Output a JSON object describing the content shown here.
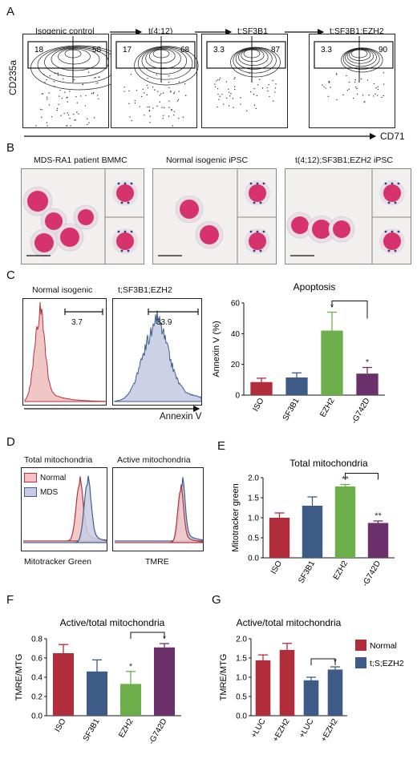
{
  "panel_letters": {
    "A": "A",
    "B": "B",
    "C": "C",
    "D": "D",
    "E": "E",
    "F": "F",
    "G": "G"
  },
  "panelA": {
    "stages": [
      "Isogenic control",
      "t(4;12)",
      "t;SF3B1",
      "t;SF3B1;EZH2"
    ],
    "gate_left": [
      "18",
      "17",
      "3.3",
      "3.3"
    ],
    "gate_right": [
      "58",
      "68",
      "87",
      "90"
    ],
    "ylabel": "CD235a",
    "xlabel": "CD71"
  },
  "panelB": {
    "titles": [
      "MDS-RA1 patient BMMC",
      "Normal isogenic iPSC",
      "t(4;12);SF3B1;EZH2 iPSC"
    ]
  },
  "panelC": {
    "hist_titles": [
      "Normal isogenic",
      "t;SF3B1;EZH2"
    ],
    "hist_values": [
      "3.7",
      "33.9"
    ],
    "xlabel": "Annexin V",
    "hist_colors": [
      "#b8323c",
      "#3d5f8f"
    ]
  },
  "panelD": {
    "titles": [
      "Total mitochondria",
      "Active mitochondria"
    ],
    "legend": [
      "Normal",
      "MDS"
    ],
    "xlabels": [
      "Mitotracker Green",
      "TMRE"
    ]
  },
  "colors": {
    "red": "#b12d3c",
    "blue": "#3d5b86",
    "green": "#6cae4a",
    "purple": "#6b2f69"
  },
  "chart_data": [
    {
      "type": "bar",
      "panel": "C",
      "title": "Apoptosis",
      "ylabel": "Annexin V (%)",
      "categories": [
        "ISO",
        "SF3B1",
        "EZH2",
        "-G742D"
      ],
      "values": [
        8.5,
        11.5,
        42,
        14
      ],
      "errors": [
        2.5,
        3,
        12,
        4
      ],
      "ylim": [
        0,
        60
      ],
      "yticks": [
        "0",
        "20",
        "40",
        "60"
      ],
      "colors": [
        "#b12d3c",
        "#3d5b86",
        "#6cae4a",
        "#6b2f69"
      ],
      "stars": [
        "",
        "",
        "*",
        "*"
      ]
    },
    {
      "type": "bar",
      "panel": "E",
      "title": "Total mitochondria",
      "ylabel": "Mitotracker green",
      "categories": [
        "ISO",
        "SF3B1",
        "EZH2",
        "-G742D"
      ],
      "values": [
        1.0,
        1.3,
        1.78,
        0.87
      ],
      "errors": [
        0.12,
        0.22,
        0.05,
        0.05
      ],
      "ylim": [
        0,
        2.0
      ],
      "yticks": [
        "0.0",
        "0.5",
        "1.0",
        "1.5",
        "2.0"
      ],
      "colors": [
        "#b12d3c",
        "#3d5b86",
        "#6cae4a",
        "#6b2f69"
      ],
      "stars": [
        "",
        "",
        "**",
        "**"
      ]
    },
    {
      "type": "bar",
      "panel": "F",
      "title": "Active/total mitochondria",
      "ylabel": "TMRE/MTG",
      "categories": [
        "ISO",
        "SF3B1",
        "EZH2",
        "-G742D"
      ],
      "values": [
        0.65,
        0.46,
        0.33,
        0.71
      ],
      "errors": [
        0.09,
        0.12,
        0.13,
        0.04
      ],
      "ylim": [
        0,
        0.8
      ],
      "yticks": [
        "0.0",
        "0.2",
        "0.4",
        "0.6",
        "0.8"
      ],
      "colors": [
        "#b12d3c",
        "#3d5b86",
        "#6cae4a",
        "#6b2f69"
      ],
      "stars": [
        "",
        "",
        "*",
        "*"
      ]
    },
    {
      "type": "bar",
      "panel": "G",
      "title": "Active/total mitochondria",
      "ylabel": "TMRE/MTG",
      "categories": [
        "+LUC",
        "+EZH2",
        "+LUC",
        "+EZH2"
      ],
      "values": [
        1.44,
        1.71,
        0.92,
        1.2
      ],
      "errors": [
        0.14,
        0.17,
        0.08,
        0.07
      ],
      "ylim": [
        0,
        2.0
      ],
      "yticks": [
        "0.0",
        "0.5",
        "1.0",
        "1.5",
        "2.0"
      ],
      "colors": [
        "#b12d3c",
        "#b12d3c",
        "#3d5b86",
        "#3d5b86"
      ],
      "stars": [
        "",
        "",
        "",
        "*"
      ],
      "legend": [
        {
          "name": "Normal",
          "color": "#b12d3c"
        },
        {
          "name": "t;S;EZH2",
          "color": "#3d5b86"
        }
      ]
    }
  ]
}
